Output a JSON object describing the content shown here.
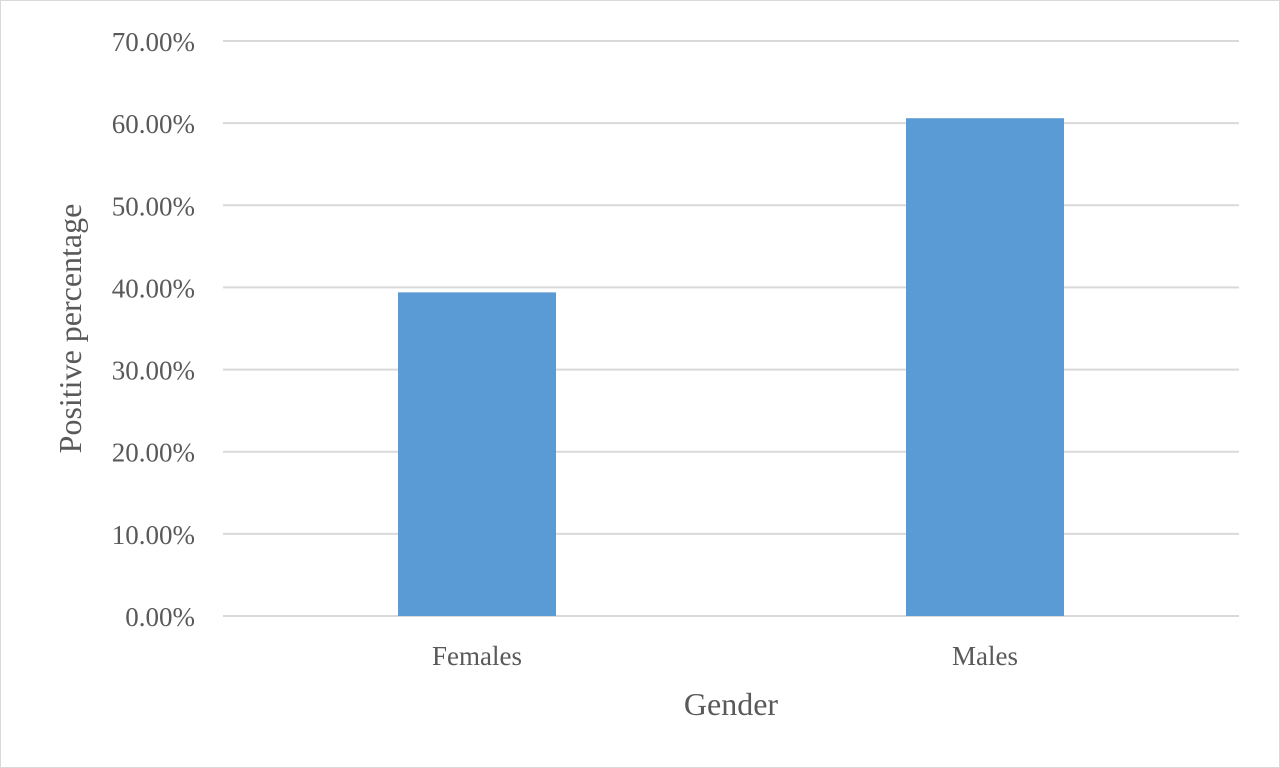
{
  "chart_data": {
    "type": "bar",
    "categories": [
      "Females",
      "Males"
    ],
    "values": [
      39.4,
      60.6
    ],
    "xlabel": "Gender",
    "ylabel": "Positive percentage",
    "ylim": [
      0,
      70
    ],
    "yticks": [
      "0.00%",
      "10.00%",
      "20.00%",
      "30.00%",
      "40.00%",
      "50.00%",
      "60.00%",
      "70.00%"
    ],
    "grid": true,
    "legend": "none",
    "colors": {
      "bar": "#5b9bd5",
      "grid": "#d9d9d9",
      "text": "#595959"
    }
  }
}
